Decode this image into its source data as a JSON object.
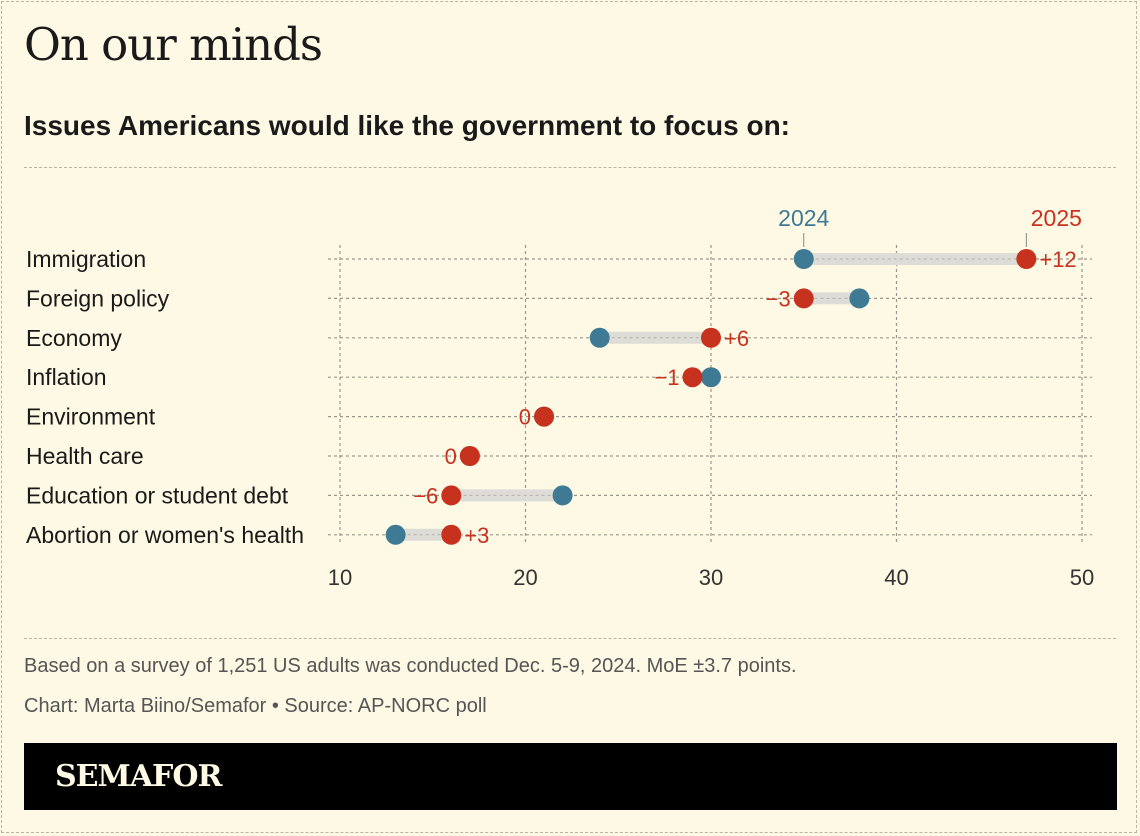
{
  "title": "On our minds",
  "subtitle": "Issues Americans would like the government to focus on:",
  "footnote": "Based on a survey of 1,251 US adults was conducted Dec. 5-9, 2024. MoE ±3.7 points.",
  "credit": "Chart: Marta Biino/Semafor • Source: AP-NORC poll",
  "brand": "SEMAFOR",
  "colors": {
    "y2024": "#3f7a94",
    "y2025": "#c7321f",
    "connector": "#dedcd6",
    "grid": "#9a988d",
    "background": "#fdf9e4"
  },
  "chart_data": {
    "type": "dumbbell",
    "title": "Issues Americans would like the government to focus on:",
    "series_names": [
      "2024",
      "2025"
    ],
    "xlim": [
      10,
      50
    ],
    "x_ticks": [
      10,
      20,
      30,
      40,
      50
    ],
    "categories": [
      {
        "label": "Immigration",
        "y2024": 35,
        "y2025": 47,
        "change": "+12"
      },
      {
        "label": "Foreign policy",
        "y2024": 38,
        "y2025": 35,
        "change": "−3"
      },
      {
        "label": "Economy",
        "y2024": 24,
        "y2025": 30,
        "change": "+6"
      },
      {
        "label": "Inflation",
        "y2024": 30,
        "y2025": 29,
        "change": "−1"
      },
      {
        "label": "Environment",
        "y2024": 21,
        "y2025": 21,
        "change": "0"
      },
      {
        "label": "Health care",
        "y2024": 17,
        "y2025": 17,
        "change": "0"
      },
      {
        "label": "Education or student debt",
        "y2024": 22,
        "y2025": 16,
        "change": "−6"
      },
      {
        "label": "Abortion or women's health",
        "y2024": 13,
        "y2025": 16,
        "change": "+3"
      }
    ]
  }
}
